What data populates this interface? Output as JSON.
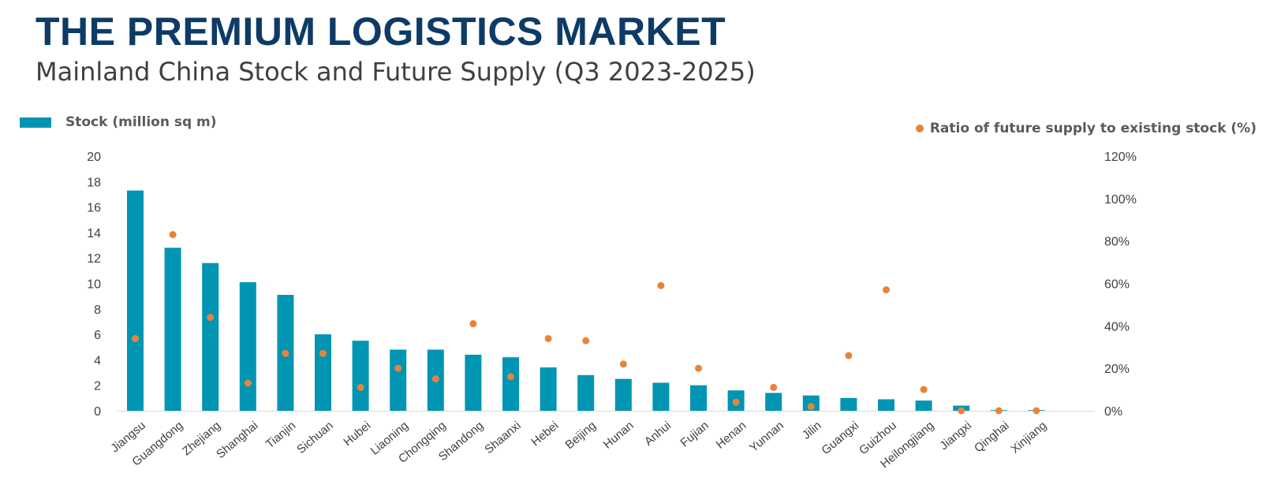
{
  "header": {
    "title": "THE PREMIUM LOGISTICS MARKET",
    "subtitle": "Mainland China Stock and Future Supply (Q3 2023-2025)"
  },
  "legend": {
    "bar_label": "Stock (million sq m)",
    "dot_label": "Ratio of future supply to existing stock (%)"
  },
  "colors": {
    "bar": "#0095b3",
    "dot": "#e8843a",
    "title": "#0d3b66"
  },
  "chart_data": {
    "type": "bar",
    "categories": [
      "Jiangsu",
      "Guangdong",
      "Zhejiang",
      "Shanghai",
      "Tianjin",
      "Sichuan",
      "Hubei",
      "Liaoning",
      "Chongqing",
      "Shandong",
      "Shaanxi",
      "Hebei",
      "Beijing",
      "Hunan",
      "Anhui",
      "Fujian",
      "Henan",
      "Yunnan",
      "Jilin",
      "Guangxi",
      "Guizhou",
      "Heilongjiang",
      "Jiangxi",
      "Qinghai",
      "Xinjiang"
    ],
    "series": [
      {
        "name": "Stock (million sq m)",
        "type": "bar",
        "axis": "left",
        "values": [
          17.3,
          12.8,
          11.6,
          10.1,
          9.1,
          6.0,
          5.5,
          4.8,
          4.8,
          4.4,
          4.2,
          3.4,
          2.8,
          2.5,
          2.2,
          2.0,
          1.6,
          1.4,
          1.2,
          1.0,
          0.9,
          0.8,
          0.4,
          0.05,
          0.05
        ]
      },
      {
        "name": "Ratio of future supply to existing stock (%)",
        "type": "scatter",
        "axis": "right",
        "values": [
          34,
          83,
          44,
          13,
          27,
          27,
          11,
          20,
          15,
          41,
          16,
          34,
          33,
          22,
          59,
          20,
          4,
          11,
          2,
          26,
          57,
          10,
          0,
          0,
          0
        ]
      }
    ],
    "y_left": {
      "ylim": [
        0,
        20
      ],
      "ticks": [
        "0",
        "2",
        "4",
        "6",
        "8",
        "10",
        "12",
        "14",
        "16",
        "18",
        "20"
      ]
    },
    "y_right": {
      "ylim": [
        0,
        120
      ],
      "ticks": [
        "0%",
        "20%",
        "40%",
        "60%",
        "80%",
        "100%",
        "120%"
      ]
    },
    "grid": false,
    "legend_placement": "top"
  }
}
